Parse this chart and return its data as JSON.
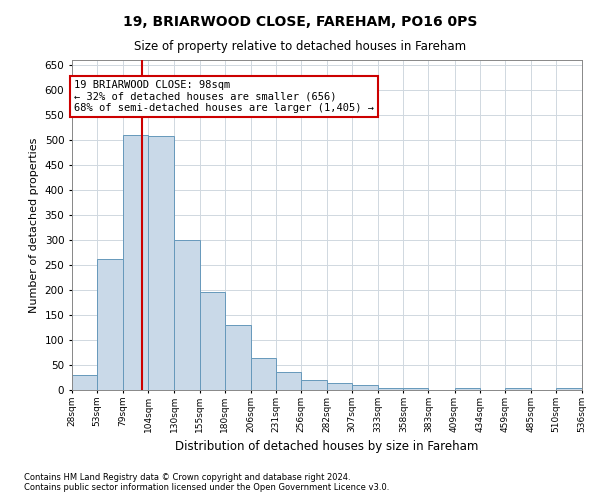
{
  "title": "19, BRIARWOOD CLOSE, FAREHAM, PO16 0PS",
  "subtitle": "Size of property relative to detached houses in Fareham",
  "xlabel": "Distribution of detached houses by size in Fareham",
  "ylabel": "Number of detached properties",
  "footnote1": "Contains HM Land Registry data © Crown copyright and database right 2024.",
  "footnote2": "Contains public sector information licensed under the Open Government Licence v3.0.",
  "property_size": 98,
  "property_label": "19 BRIARWOOD CLOSE: 98sqm",
  "annotation_line1": "← 32% of detached houses are smaller (656)",
  "annotation_line2": "68% of semi-detached houses are larger (1,405) →",
  "bin_edges": [
    28,
    53,
    79,
    104,
    130,
    155,
    180,
    206,
    231,
    256,
    282,
    307,
    333,
    358,
    383,
    409,
    434,
    459,
    485,
    510,
    536
  ],
  "bin_labels": [
    "28sqm",
    "53sqm",
    "79sqm",
    "104sqm",
    "130sqm",
    "155sqm",
    "180sqm",
    "206sqm",
    "231sqm",
    "256sqm",
    "282sqm",
    "307sqm",
    "333sqm",
    "358sqm",
    "383sqm",
    "409sqm",
    "434sqm",
    "459sqm",
    "485sqm",
    "510sqm",
    "536sqm"
  ],
  "bar_heights": [
    30,
    263,
    511,
    508,
    301,
    196,
    130,
    64,
    37,
    21,
    14,
    10,
    5,
    4,
    0,
    4,
    0,
    4,
    0,
    4
  ],
  "bar_color": "#c9d9e8",
  "bar_edge_color": "#6699bb",
  "red_line_color": "#cc0000",
  "annotation_box_color": "#cc0000",
  "grid_color": "#d0d8e0",
  "background_color": "#ffffff",
  "ylim": [
    0,
    660
  ],
  "yticks": [
    0,
    50,
    100,
    150,
    200,
    250,
    300,
    350,
    400,
    450,
    500,
    550,
    600,
    650
  ]
}
